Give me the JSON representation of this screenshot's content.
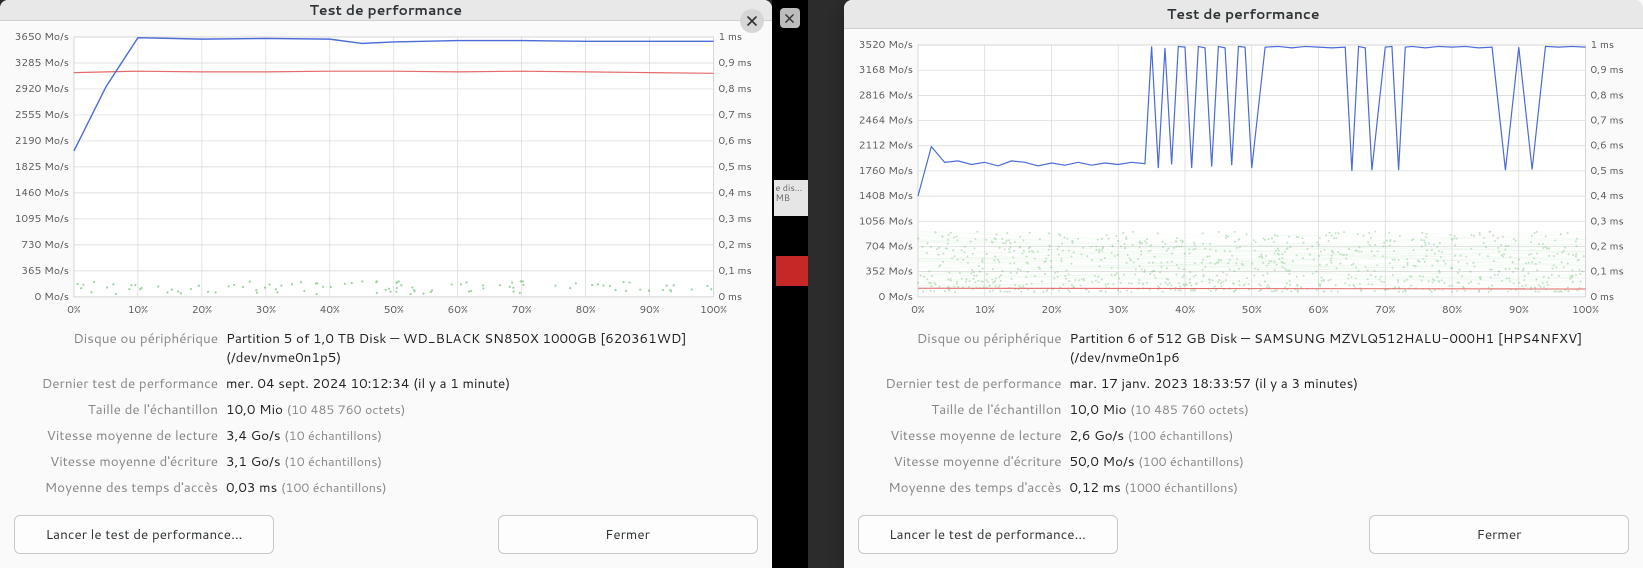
{
  "left": {
    "title": "Test de performance",
    "chart": {
      "type": "line-scatter-dual-axis",
      "background_color": "#ffffff",
      "grid_color": "#d7d7d7",
      "x_percent_ticks": [
        "0%",
        "10%",
        "20%",
        "30%",
        "40%",
        "50%",
        "60%",
        "70%",
        "80%",
        "90%",
        "100%"
      ],
      "y_left_ticks": [
        "0 Mo/s",
        "365 Mo/s",
        "730 Mo/s",
        "1095 Mo/s",
        "1460 Mo/s",
        "1825 Mo/s",
        "2190 Mo/s",
        "2555 Mo/s",
        "2920 Mo/s",
        "3285 Mo/s",
        "3650 Mo/s"
      ],
      "y_left_max": 3650,
      "y_right_ticks": [
        "0 ms",
        "0,1 ms",
        "0,2 ms",
        "0,3 ms",
        "0,4 ms",
        "0,5 ms",
        "0,6 ms",
        "0,7 ms",
        "0,8 ms",
        "0,9 ms",
        "1 ms"
      ],
      "y_right_max": 1.0,
      "read_line": {
        "color": "#4a6bd8",
        "width": 1.4,
        "x": [
          0,
          5,
          10,
          20,
          30,
          40,
          45,
          50,
          60,
          70,
          80,
          90,
          100
        ],
        "y": [
          2050,
          2950,
          3640,
          3620,
          3630,
          3620,
          3560,
          3580,
          3600,
          3600,
          3590,
          3590,
          3590
        ]
      },
      "write_line": {
        "color": "#e46a6a",
        "width": 1.2,
        "x": [
          0,
          10,
          20,
          30,
          40,
          50,
          60,
          70,
          80,
          90,
          100
        ],
        "y": [
          3150,
          3170,
          3160,
          3160,
          3170,
          3170,
          3160,
          3170,
          3160,
          3150,
          3140
        ]
      },
      "access_scatter": {
        "color": "#4caf50",
        "opacity": 0.55,
        "radius": 1.1,
        "count": 100,
        "y_ms_range": [
          0.01,
          0.06
        ]
      }
    },
    "info_labels": {
      "disk": "Disque ou périphérique",
      "last": "Dernier test de performance",
      "sample": "Taille de l'échantillon",
      "read": "Vitesse moyenne de lecture",
      "write": "Vitesse moyenne d'écriture",
      "access": "Moyenne des temps d'accès"
    },
    "info_values": {
      "disk": "Partition 5 of 1,0 TB Disk — WD_BLACK SN850X 1000GB [620361WD] (/dev/nvme0n1p5)",
      "last": "mer. 04 sept. 2024 10:12:34 (il y a 1 minute)",
      "sample_main": "10,0 Mio ",
      "sample_note": "(10 485 760 octets)",
      "read_main": "3,4 Go/s ",
      "read_note": "(10 échantillons)",
      "write_main": "3,1 Go/s ",
      "write_note": "(10 échantillons)",
      "access_main": "0,03 ms ",
      "access_note": "(100 échantillons)"
    },
    "buttons": {
      "launch": "Lancer le test de performance…",
      "close": "Fermer"
    }
  },
  "right": {
    "title": "Test de performance",
    "chart": {
      "type": "line-scatter-dual-axis",
      "background_color": "#ffffff",
      "grid_color": "#d7d7d7",
      "x_percent_ticks": [
        "0%",
        "10%",
        "20%",
        "30%",
        "40%",
        "50%",
        "60%",
        "70%",
        "80%",
        "90%",
        "100%"
      ],
      "y_left_ticks": [
        "0 Mo/s",
        "352 Mo/s",
        "704 Mo/s",
        "1056 Mo/s",
        "1408 Mo/s",
        "1760 Mo/s",
        "2112 Mo/s",
        "2464 Mo/s",
        "2816 Mo/s",
        "3168 Mo/s",
        "3520 Mo/s"
      ],
      "y_left_max": 3520,
      "y_right_ticks": [
        "0 ms",
        "0,1 ms",
        "0,2 ms",
        "0,3 ms",
        "0,4 ms",
        "0,5 ms",
        "0,6 ms",
        "0,7 ms",
        "0,8 ms",
        "0,9 ms",
        "1 ms"
      ],
      "y_right_max": 1.0,
      "read_line": {
        "color": "#4a6bd8",
        "width": 1.2,
        "x": [
          0,
          2,
          4,
          6,
          8,
          10,
          12,
          14,
          16,
          18,
          20,
          22,
          24,
          26,
          28,
          30,
          32,
          34,
          35,
          36,
          37,
          38,
          39,
          40,
          41,
          42,
          43,
          44,
          45,
          46,
          47,
          48,
          49,
          50,
          52,
          54,
          56,
          58,
          60,
          62,
          64,
          65,
          66,
          67,
          68,
          70,
          71,
          72,
          73,
          74,
          76,
          78,
          80,
          82,
          84,
          86,
          88,
          90,
          92,
          94,
          96,
          98,
          100
        ],
        "y": [
          1408,
          2100,
          1880,
          1900,
          1850,
          1880,
          1830,
          1900,
          1880,
          1830,
          1870,
          1840,
          1880,
          1840,
          1870,
          1850,
          1880,
          1860,
          3500,
          1800,
          3480,
          1850,
          3500,
          3490,
          1800,
          3500,
          3480,
          1820,
          3500,
          3480,
          1840,
          3500,
          3490,
          1800,
          3490,
          3500,
          3480,
          3500,
          3490,
          3480,
          3490,
          1760,
          3500,
          3480,
          1770,
          3490,
          3500,
          1770,
          3490,
          3500,
          3480,
          3500,
          3490,
          3500,
          3480,
          3490,
          1770,
          3490,
          1780,
          3500,
          3490,
          3500,
          3490
        ]
      },
      "write_line": {
        "color": "#e46a6a",
        "width": 1.1,
        "x": [
          0,
          100
        ],
        "y": [
          120,
          110
        ]
      },
      "access_scatter": {
        "color": "#4caf50",
        "opacity": 0.35,
        "radius": 1.0,
        "count": 1000,
        "y_ms_range": [
          0.02,
          0.26
        ],
        "band": true
      }
    },
    "info_labels": {
      "disk": "Disque ou périphérique",
      "last": "Dernier test de performance",
      "sample": "Taille de l'échantillon",
      "read": "Vitesse moyenne de lecture",
      "write": "Vitesse moyenne d'écriture",
      "access": "Moyenne des temps d'accès"
    },
    "info_values": {
      "disk": "Partition 6 of 512 GB Disk — SAMSUNG MZVLQ512HALU-000H1 [HPS4NFXV] (/dev/nvme0n1p6",
      "last": "mar. 17 janv. 2023 18:33:57 (il y a 3 minutes)",
      "sample_main": "10,0 Mio ",
      "sample_note": "(10 485 760 octets)",
      "read_main": "2,6 Go/s ",
      "read_note": "(100 échantillons)",
      "write_main": "50,0 Mo/s ",
      "write_note": "(100 échantillons)",
      "access_main": "0,12 ms ",
      "access_note": "(1000 échantillons)"
    },
    "buttons": {
      "launch": "Lancer le test de performance…",
      "close": "Fermer"
    }
  },
  "gap": {
    "bg_text": "e dis…\nMB"
  }
}
